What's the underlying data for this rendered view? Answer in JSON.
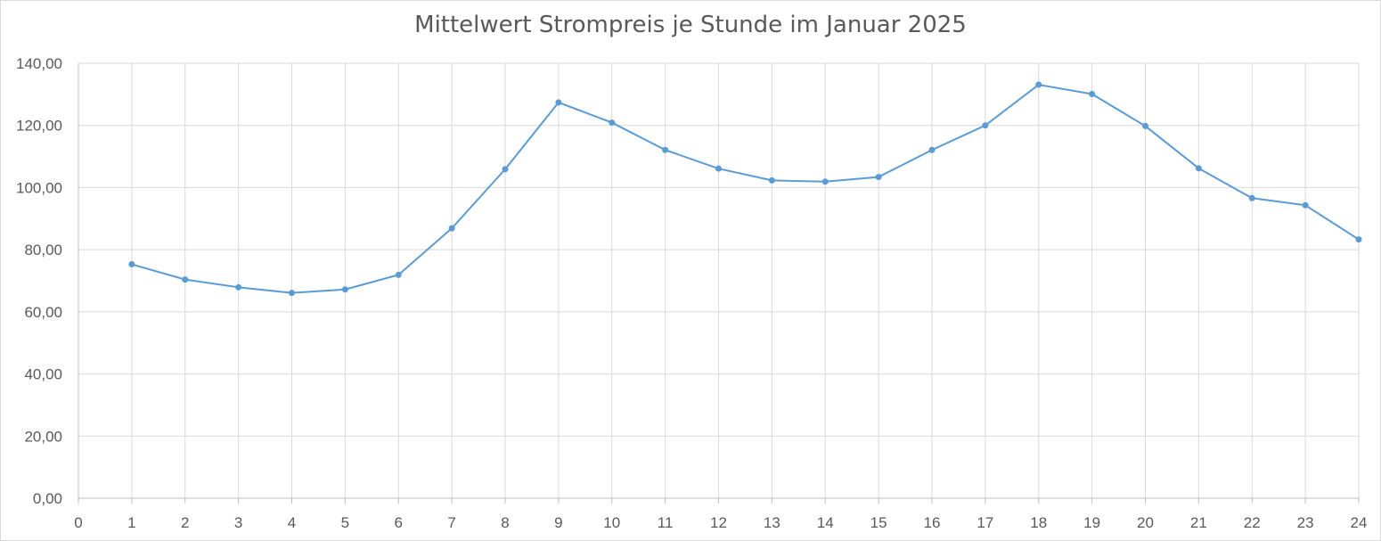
{
  "chart_data": {
    "type": "line",
    "title": "Mittelwert Strompreis je Stunde im Januar 2025",
    "xlabel": "",
    "ylabel": "",
    "xlim": [
      0,
      24
    ],
    "ylim": [
      0,
      140
    ],
    "x_ticks": [
      "0",
      "1",
      "2",
      "3",
      "4",
      "5",
      "6",
      "7",
      "8",
      "9",
      "10",
      "11",
      "12",
      "13",
      "14",
      "15",
      "16",
      "17",
      "18",
      "19",
      "20",
      "21",
      "22",
      "23",
      "24"
    ],
    "y_ticks": [
      "0,00",
      "20,00",
      "40,00",
      "60,00",
      "80,00",
      "100,00",
      "120,00",
      "140,00"
    ],
    "grid": true,
    "legend": "none",
    "series": [
      {
        "x": [
          1,
          2,
          3,
          4,
          5,
          6,
          7,
          8,
          9,
          10,
          11,
          12,
          13,
          14,
          15,
          16,
          17,
          18,
          19,
          20,
          21,
          22,
          23,
          24
        ],
        "values": [
          75.3,
          70.4,
          67.9,
          66.1,
          67.2,
          71.9,
          86.9,
          105.9,
          127.4,
          120.9,
          112.1,
          106.1,
          102.3,
          101.9,
          103.4,
          112.1,
          120.0,
          133.1,
          130.1,
          119.8,
          106.2,
          96.6,
          94.3,
          83.3
        ],
        "color": "#5b9bd5"
      }
    ],
    "grid_color": "#d9d9d9",
    "axis_color": "#bfbfbf"
  }
}
